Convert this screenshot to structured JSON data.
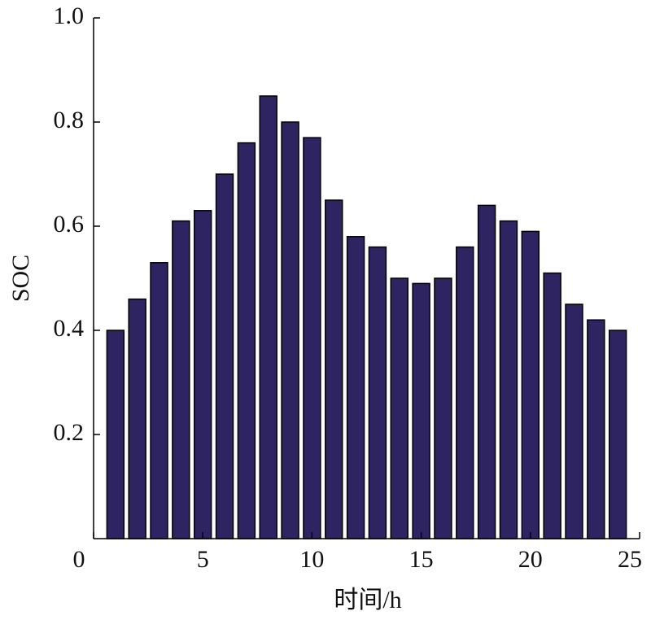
{
  "chart_data": {
    "type": "bar",
    "x_label": "时间/h",
    "y_label": "SOC",
    "x": [
      1,
      2,
      3,
      4,
      5,
      6,
      7,
      8,
      9,
      10,
      11,
      12,
      13,
      14,
      15,
      16,
      17,
      18,
      19,
      20,
      21,
      22,
      23,
      24
    ],
    "values": [
      0.4,
      0.46,
      0.53,
      0.61,
      0.63,
      0.7,
      0.76,
      0.85,
      0.8,
      0.77,
      0.65,
      0.58,
      0.56,
      0.5,
      0.49,
      0.5,
      0.56,
      0.64,
      0.61,
      0.59,
      0.51,
      0.45,
      0.42,
      0.4
    ],
    "color": "#2e2462",
    "xlim": [
      0,
      25
    ],
    "xticks": [
      0,
      5,
      10,
      15,
      20,
      25
    ],
    "ylim": [
      0,
      1
    ],
    "yticks": [
      0.2,
      0.4,
      0.6,
      0.8,
      {
        "value": 1,
        "label": "1.0"
      }
    ],
    "grid": false
  }
}
